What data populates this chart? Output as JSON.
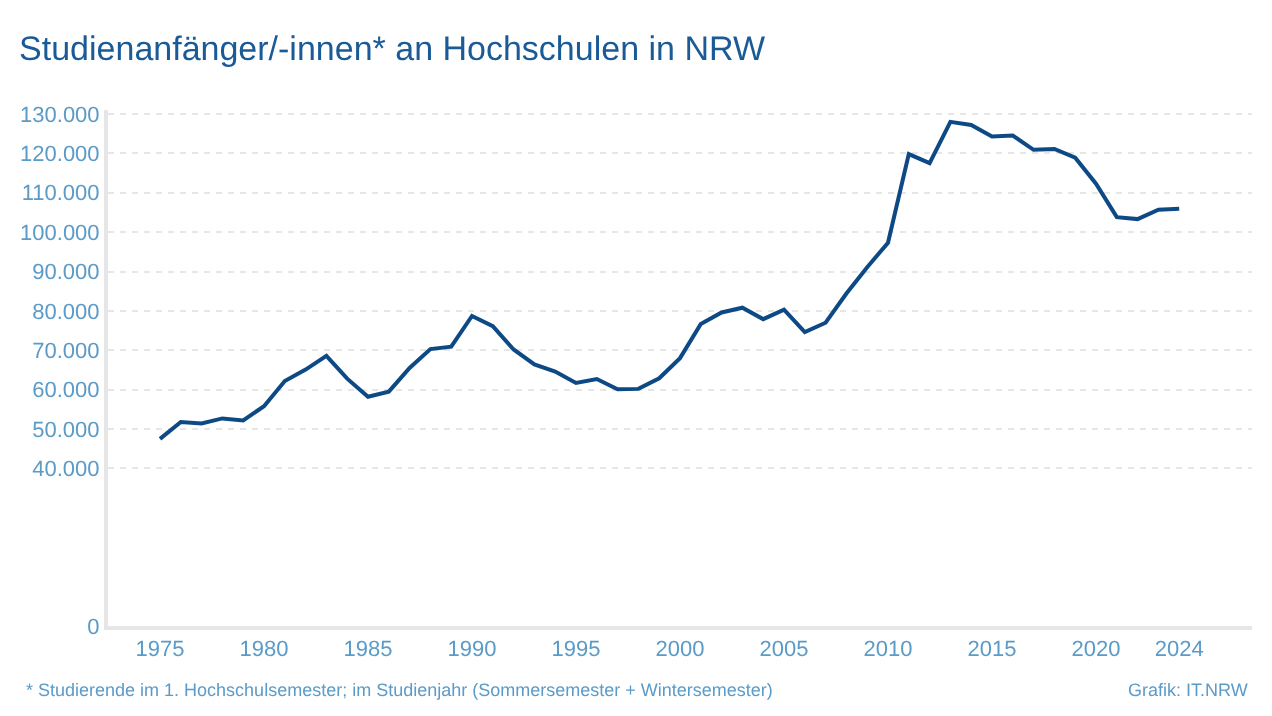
{
  "chart_data": {
    "type": "line",
    "title": "Studienanfänger/-innen* an Hochschulen in NRW",
    "x": [
      1975,
      1976,
      1977,
      1978,
      1979,
      1980,
      1981,
      1982,
      1983,
      1984,
      1985,
      1986,
      1987,
      1988,
      1989,
      1990,
      1991,
      1992,
      1993,
      1994,
      1995,
      1996,
      1997,
      1998,
      1999,
      2000,
      2001,
      2002,
      2003,
      2004,
      2005,
      2006,
      2007,
      2008,
      2009,
      2010,
      2011,
      2012,
      2013,
      2014,
      2015,
      2016,
      2017,
      2018,
      2019,
      2020,
      2021,
      2022,
      2023,
      2024
    ],
    "series": [
      {
        "color": "#0d4a85",
        "values": [
          47500,
          51800,
          51400,
          52700,
          52200,
          55800,
          62200,
          65100,
          68600,
          62800,
          58200,
          59500,
          65500,
          70300,
          70900,
          78700,
          76100,
          70200,
          66400,
          64600,
          61700,
          62700,
          60100,
          60200,
          62900,
          68000,
          76700,
          79600,
          80800,
          77900,
          80300,
          74600,
          77000,
          84400,
          91100,
          97300,
          119800,
          117500,
          128000,
          127200,
          124300,
          124500,
          120900,
          121100,
          118900,
          112300,
          103800,
          103300,
          105700,
          105900
        ]
      }
    ],
    "xlim": [
      1972.5,
      2027.5
    ],
    "xticks": [
      1975,
      1980,
      1985,
      1990,
      1995,
      2000,
      2005,
      2010,
      2015,
      2020,
      2024
    ],
    "ylim": [
      0,
      131000
    ],
    "yticks": [
      0,
      {
        "value": 40000,
        "label": "40.000"
      },
      {
        "value": 50000,
        "label": "50.000"
      },
      {
        "value": 60000,
        "label": "60.000"
      },
      {
        "value": 70000,
        "label": "70.000"
      },
      {
        "value": 80000,
        "label": "80.000"
      },
      {
        "value": 90000,
        "label": "90.000"
      },
      {
        "value": 100000,
        "label": "100.000"
      },
      {
        "value": 110000,
        "label": "110.000"
      },
      {
        "value": 120000,
        "label": "120.000"
      },
      {
        "value": 130000,
        "label": "130.000"
      }
    ],
    "grid": "y",
    "marker": "none",
    "line_style": "solid",
    "annotations": [
      "* Studierende im 1. Hochschulsemester; im Studienjahr (Sommersemester + Wintersemester)",
      "Grafik: IT.NRW"
    ]
  }
}
